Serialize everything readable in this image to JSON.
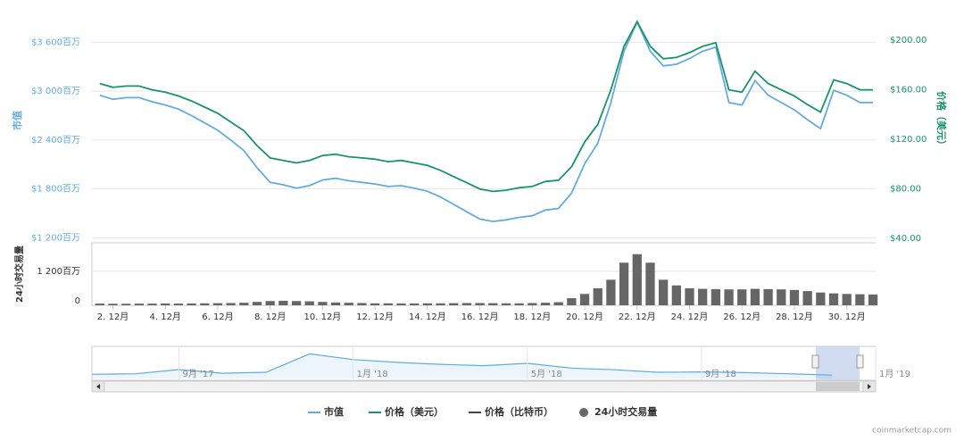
{
  "chart_data": {
    "type": "line",
    "y_label": "市值",
    "y2_label": "价格（美元）",
    "volume_label": "24小时交易量",
    "credits": "coinmarketcap.com",
    "grid": true,
    "x": [
      1.5,
      2,
      2.5,
      3,
      3.5,
      4,
      4.5,
      5,
      5.5,
      6,
      6.5,
      7,
      7.5,
      8,
      8.5,
      9,
      9.5,
      10,
      10.5,
      11,
      11.5,
      12,
      12.5,
      13,
      13.5,
      14,
      14.5,
      15,
      15.5,
      16,
      16.5,
      17,
      17.5,
      18,
      18.5,
      19,
      19.5,
      20,
      20.5,
      21,
      21.5,
      22,
      22.5,
      23,
      23.5,
      24,
      24.5,
      25,
      25.5,
      26,
      26.5,
      27,
      27.5,
      28,
      28.5,
      29,
      29.5,
      30,
      30.5,
      31
    ],
    "xlim": [
      1.2,
      31.1
    ],
    "xticks": [
      {
        "value": 2,
        "label": "2. 12月"
      },
      {
        "value": 4,
        "label": "4. 12月"
      },
      {
        "value": 6,
        "label": "6. 12月"
      },
      {
        "value": 8,
        "label": "8. 12月"
      },
      {
        "value": 10,
        "label": "10. 12月"
      },
      {
        "value": 12,
        "label": "12. 12月"
      },
      {
        "value": 14,
        "label": "14. 12月"
      },
      {
        "value": 16,
        "label": "16. 12月"
      },
      {
        "value": 18,
        "label": "18. 12月"
      },
      {
        "value": 20,
        "label": "20. 12月"
      },
      {
        "value": 22,
        "label": "22. 12月"
      },
      {
        "value": 24,
        "label": "24. 12月"
      },
      {
        "value": 26,
        "label": "26. 12月"
      },
      {
        "value": 28,
        "label": "28. 12月"
      },
      {
        "value": 30,
        "label": "30. 12月"
      }
    ],
    "ylim": [
      1160,
      3900
    ],
    "yticks": [
      {
        "value": 1200,
        "label": "$1 200百万"
      },
      {
        "value": 1800,
        "label": "$1 800百万"
      },
      {
        "value": 2400,
        "label": "$2 400百万"
      },
      {
        "value": 3000,
        "label": "$3 000百万"
      },
      {
        "value": 3600,
        "label": "$3 600百万"
      }
    ],
    "y2lim": [
      38,
      218
    ],
    "y2ticks": [
      {
        "value": 40,
        "label": "$40.00"
      },
      {
        "value": 80,
        "label": "$80.00"
      },
      {
        "value": 120,
        "label": "$120.00"
      },
      {
        "value": 160,
        "label": "$160.00"
      },
      {
        "value": 200,
        "label": "$200.00"
      }
    ],
    "volume_lim": [
      0,
      2200
    ],
    "volume_ticks": [
      0,
      {
        "value": 1200,
        "label": "1 200百万"
      }
    ],
    "series": [
      {
        "name": "市值",
        "color": "#62acdf",
        "values": [
          2950,
          2900,
          2920,
          2920,
          2870,
          2830,
          2780,
          2700,
          2610,
          2520,
          2400,
          2270,
          2060,
          1880,
          1850,
          1810,
          1840,
          1910,
          1930,
          1900,
          1880,
          1860,
          1830,
          1840,
          1810,
          1770,
          1700,
          1610,
          1520,
          1430,
          1400,
          1420,
          1450,
          1470,
          1540,
          1560,
          1750,
          2110,
          2360,
          2860,
          3490,
          3850,
          3490,
          3310,
          3330,
          3400,
          3490,
          3540,
          2860,
          2830,
          3130,
          2950,
          2860,
          2770,
          2650,
          2540,
          3010,
          2950,
          2860,
          2860
        ]
      },
      {
        "name": "价格（美元）",
        "color": "#17946c",
        "axis": "y2",
        "values": [
          165,
          162,
          163,
          163,
          160,
          158,
          155,
          151,
          146,
          141,
          134,
          127,
          115,
          105,
          103,
          101,
          103,
          107,
          108,
          106,
          105,
          104,
          102,
          103,
          101,
          99,
          95,
          90,
          85,
          80,
          78,
          79,
          81,
          82,
          86,
          87,
          98,
          118,
          132,
          160,
          195,
          215,
          195,
          185,
          186,
          190,
          195,
          198,
          160,
          158,
          175,
          165,
          160,
          155,
          148,
          142,
          168,
          165,
          160,
          160
        ]
      },
      {
        "name": "价格（比特币）",
        "color": "#444444",
        "visible": false
      },
      {
        "name": "24小时交易量",
        "color": "#666666",
        "axis": "volume",
        "values": [
          60,
          55,
          55,
          60,
          60,
          65,
          60,
          65,
          70,
          75,
          80,
          90,
          120,
          150,
          160,
          150,
          140,
          120,
          100,
          90,
          80,
          70,
          70,
          65,
          65,
          70,
          70,
          75,
          80,
          80,
          75,
          70,
          70,
          80,
          90,
          110,
          250,
          400,
          600,
          900,
          1500,
          1800,
          1500,
          900,
          700,
          600,
          580,
          570,
          560,
          560,
          580,
          570,
          560,
          540,
          500,
          450,
          420,
          400,
          390,
          380
        ]
      }
    ],
    "navigator": {
      "x": [
        "2017-07",
        "2017-08",
        "2017-09",
        "2017-10",
        "2017-11",
        "2017-12",
        "2018-01",
        "2018-02",
        "2018-03",
        "2018-04",
        "2018-05",
        "2018-06",
        "2018-07",
        "2018-08",
        "2018-09",
        "2018-10",
        "2018-11",
        "2018-12"
      ],
      "xlim": [
        "2017-07",
        "2019-01"
      ],
      "xticks": [
        {
          "value": "2017-09",
          "label": "9月 '17"
        },
        {
          "value": "2018-01",
          "label": "1月 '18"
        },
        {
          "value": "2018-05",
          "label": "5月 '18"
        },
        {
          "value": "2018-09",
          "label": "9月 '18"
        },
        {
          "value": "2019-01",
          "label": "1月 '19"
        }
      ],
      "ylim": [
        0,
        16000
      ],
      "values": [
        2200,
        2500,
        4700,
        2800,
        3300,
        13000,
        10000,
        8500,
        7500,
        6800,
        8000,
        5500,
        4600,
        3300,
        3500,
        3100,
        2500,
        1800
      ]
    }
  }
}
